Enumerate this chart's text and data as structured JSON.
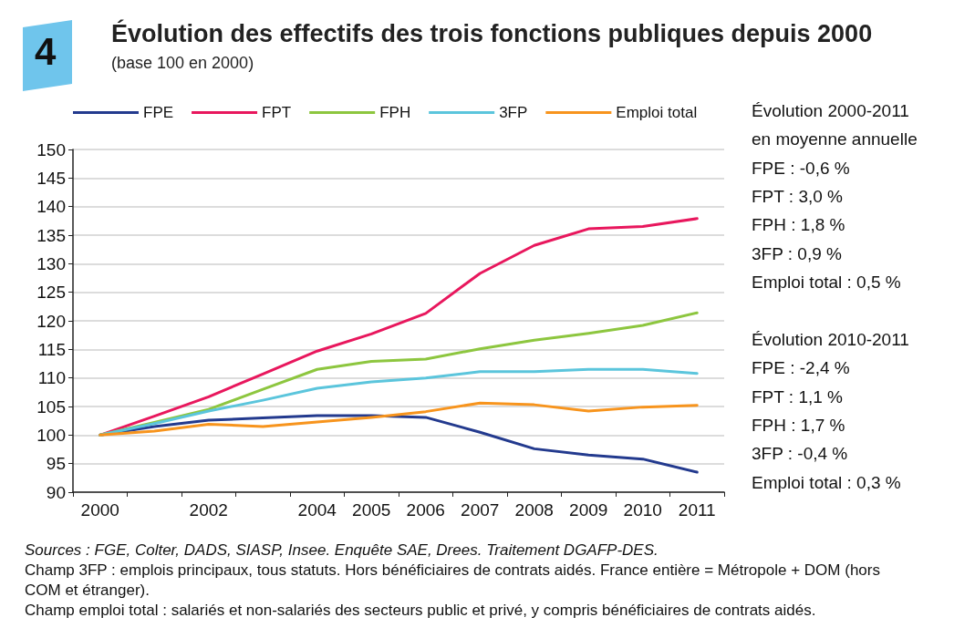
{
  "chart_data": {
    "type": "line",
    "title": "Évolution des effectifs des trois fonctions publiques depuis 2000",
    "subtitle": "(base 100 en 2000)",
    "categories": [
      "2000",
      null,
      "2002",
      null,
      "2004",
      "2005",
      "2006",
      "2007",
      "2008",
      "2009",
      "2010",
      "2011"
    ],
    "series": [
      {
        "name": "FPE",
        "color": "#233a8e",
        "values": [
          100,
          101.5,
          102.6,
          103.0,
          103.4,
          103.4,
          103.1,
          100.5,
          97.6,
          96.5,
          95.8,
          93.5
        ]
      },
      {
        "name": "FPT",
        "color": "#e8175d",
        "values": [
          100,
          103.3,
          106.7,
          110.7,
          114.7,
          117.7,
          121.3,
          128.3,
          133.2,
          136.1,
          136.5,
          137.9
        ]
      },
      {
        "name": "FPH",
        "color": "#8dc63f",
        "values": [
          100,
          102.2,
          104.5,
          108.0,
          111.5,
          112.9,
          113.3,
          115.1,
          116.6,
          117.8,
          119.2,
          121.4
        ]
      },
      {
        "name": "3FP",
        "color": "#5bc5dc",
        "values": [
          100,
          102.0,
          104.2,
          106.1,
          108.2,
          109.3,
          110.0,
          111.1,
          111.1,
          111.5,
          111.5,
          110.8
        ]
      },
      {
        "name": "Emploi total",
        "color": "#f7941d",
        "values": [
          100,
          100.7,
          101.9,
          101.5,
          102.3,
          103.1,
          104.1,
          105.6,
          105.3,
          104.2,
          104.9,
          105.2
        ]
      }
    ],
    "ylim": [
      90,
      150
    ],
    "yticks": [
      90,
      95,
      100,
      105,
      110,
      115,
      120,
      125,
      130,
      135,
      140,
      145,
      150
    ],
    "grid": "y",
    "legend": "top left",
    "marker": "none",
    "line_style": "solid",
    "annotations": [
      "4",
      "Évolution 2000-2011",
      "en moyenne annuelle",
      "FPE : -0,6 %",
      "FPT : 3,0 %",
      "FPH : 1,8 %",
      "3FP : 0,9 %",
      "Emploi total : 0,5 %",
      "Évolution 2010-2011",
      "FPE : -2,4 %",
      "FPT : 1,1 %",
      "FPH : 1,7 %",
      "3FP : -0,4 %",
      "Emploi total : 0,3 %",
      "Sources : FGE, Colter, DADS, SIASP, Insee. Enquête SAE, Drees. Traitement DGAFP-DES.",
      "Champ 3FP : emplois principaux, tous statuts. Hors bénéficiaires de contrats aidés. France entière = Métropole + DOM (hors COM et étranger).",
      "Champ emploi total : salariés et non-salariés des secteurs public et privé, y compris bénéficiaires de contrats aidés."
    ]
  }
}
